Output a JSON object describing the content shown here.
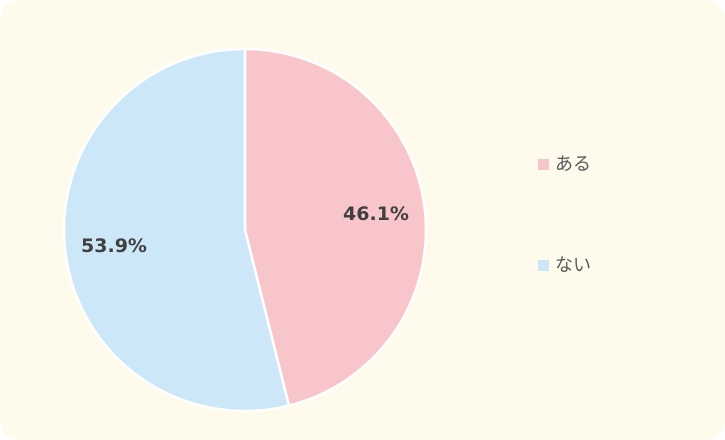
{
  "chart_data": {
    "type": "pie",
    "categories": [
      "ある",
      "ない"
    ],
    "values": [
      46.1,
      53.9
    ],
    "data_labels": [
      "46.1%",
      "53.9%"
    ],
    "colors": [
      "#f8c6ca",
      "#cce7f8"
    ],
    "start_angle": "12 o'clock",
    "direction": "clockwise",
    "legend_position": "right",
    "background": "#fefaec"
  }
}
